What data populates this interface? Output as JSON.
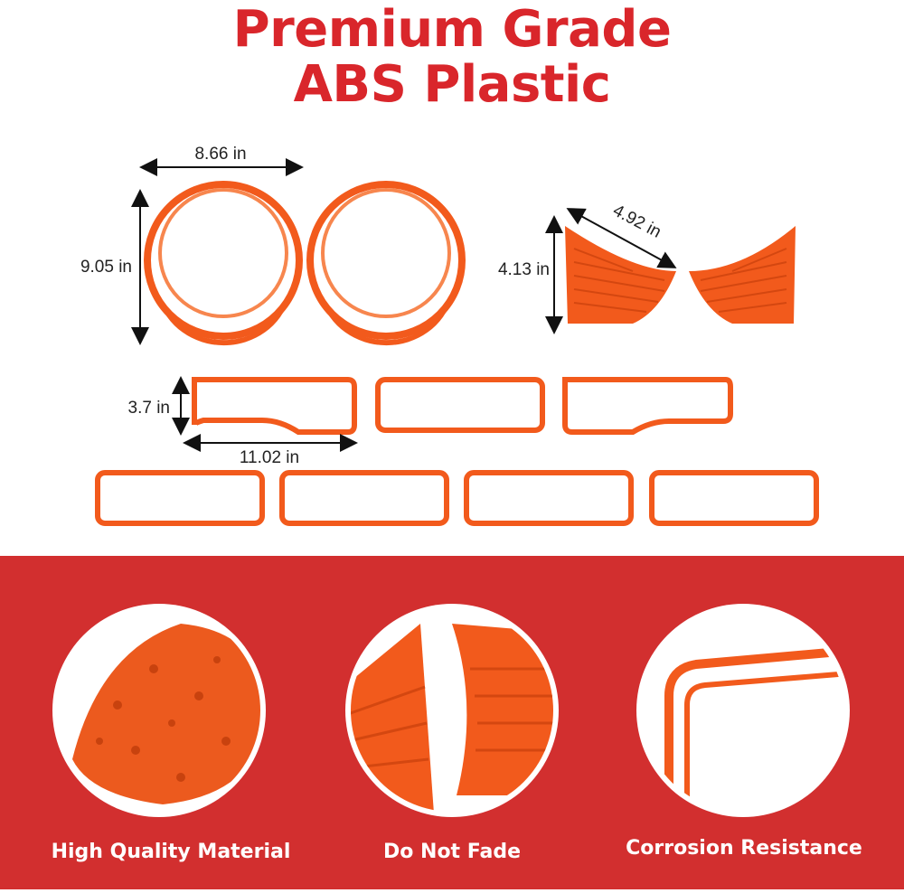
{
  "title": {
    "line1": "Premium Grade",
    "line2": "ABS Plastic"
  },
  "colors": {
    "title_red": "#d9262b",
    "band_red": "#d22f2f",
    "part_orange": "#f25a1c"
  },
  "dimensions": {
    "ring_width": "8.66 in",
    "ring_height": "9.05 in",
    "panel_width": "4.92 in",
    "panel_height": "4.13 in",
    "frame_height": "3.7 in",
    "frame_width": "11.02 in"
  },
  "features": [
    {
      "label": "High Quality Material",
      "icon": "plastic-pellets"
    },
    {
      "label": "Do Not Fade",
      "icon": "ribbed-panels"
    },
    {
      "label": "Corrosion Resistance",
      "icon": "frame-closeup"
    }
  ]
}
